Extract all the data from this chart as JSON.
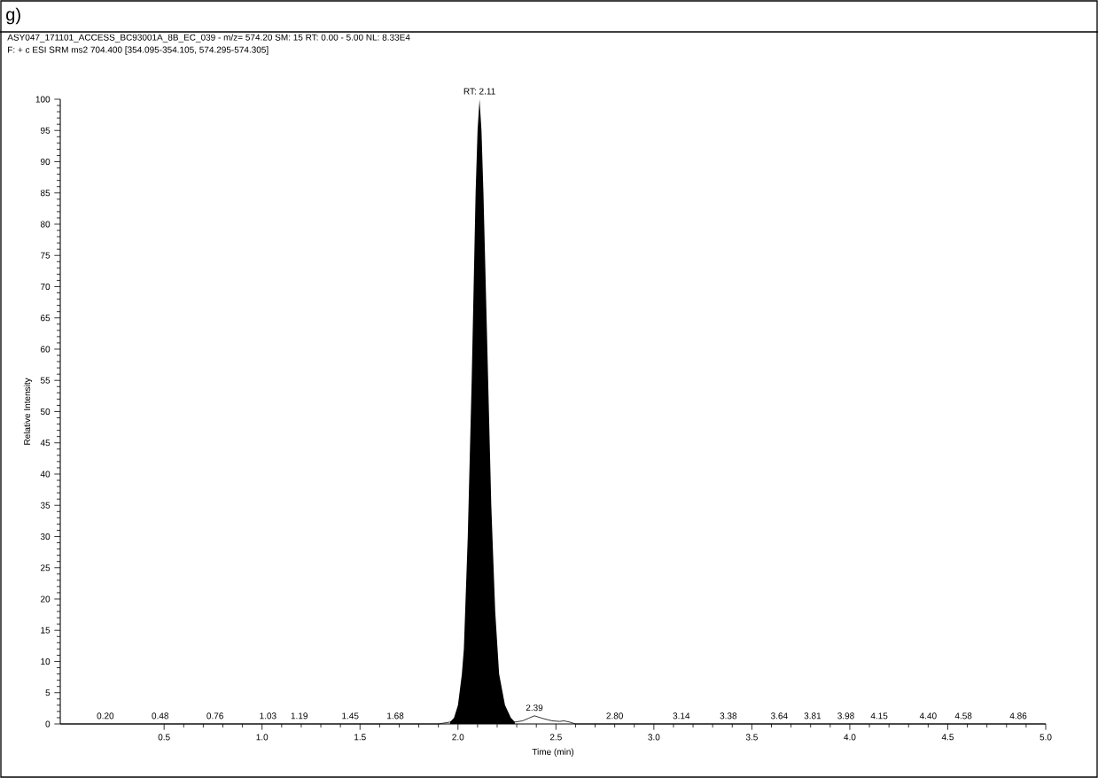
{
  "chart_data": {
    "type": "line",
    "title": "ASY047_171101_ACCESS_BC93001A_8B_EC_039 - m/z= 574.20  SM: 15 RT: 0.00 - 5.00  NL: 8.33E4",
    "subtitle": "F: + c ESI SRM ms2 704.400 [354.095-354.105, 574.295-574.305]",
    "xlabel": "Time (min)",
    "ylabel": "Relative Intensity",
    "series": [
      {
        "type": "area",
        "color": "#000000",
        "x": [
          1.96,
          1.98,
          2.0,
          2.02,
          2.03,
          2.05,
          2.07,
          2.09,
          2.1,
          2.11,
          2.12,
          2.13,
          2.15,
          2.17,
          2.19,
          2.21,
          2.24,
          2.27,
          2.29
        ],
        "values": [
          0.3,
          1,
          3,
          8,
          12,
          30,
          55,
          85,
          95,
          100,
          95,
          85,
          60,
          35,
          18,
          8,
          3,
          1,
          0.3
        ]
      },
      {
        "color": "#000000",
        "x": [
          -0.03,
          1.9,
          1.96,
          2.29,
          2.33,
          2.36,
          2.39,
          2.43,
          2.48,
          2.52,
          2.54,
          2.57,
          2.6,
          5.0
        ],
        "values": [
          0,
          0,
          0.3,
          0.3,
          0.5,
          0.9,
          1.3,
          0.9,
          0.5,
          0.4,
          0.5,
          0.3,
          0,
          0
        ]
      }
    ],
    "xlim": [
      -0.03,
      5.0
    ],
    "ylim": [
      0,
      100
    ],
    "xticks": [
      {
        "value": 0.5,
        "label": "0.5"
      },
      {
        "value": 1.0,
        "label": "1.0"
      },
      {
        "value": 1.5,
        "label": "1.5"
      },
      {
        "value": 2.0,
        "label": "2.0"
      },
      {
        "value": 2.5,
        "label": "2.5"
      },
      {
        "value": 3.0,
        "label": "3.0"
      },
      {
        "value": 3.5,
        "label": "3.5"
      },
      {
        "value": 4.0,
        "label": "4.0"
      },
      {
        "value": 4.5,
        "label": "4.5"
      },
      {
        "value": 5.0,
        "label": "5.0"
      }
    ],
    "yticks": [
      0,
      5,
      10,
      15,
      20,
      25,
      30,
      35,
      40,
      45,
      50,
      55,
      60,
      65,
      70,
      75,
      80,
      85,
      90,
      95,
      100
    ],
    "grid": false,
    "annotations": [
      "g)",
      {
        "text": "RT: 2.11",
        "x": 2.11,
        "y": 100
      },
      {
        "text": "2.39",
        "x": 2.39,
        "y": 1.3
      },
      {
        "text": "0.20",
        "x": 0.2,
        "y": 0
      },
      {
        "text": "0.48",
        "x": 0.48,
        "y": 0
      },
      {
        "text": "0.76",
        "x": 0.76,
        "y": 0
      },
      {
        "text": "1.03",
        "x": 1.03,
        "y": 0
      },
      {
        "text": "1.19",
        "x": 1.19,
        "y": 0
      },
      {
        "text": "1.45",
        "x": 1.45,
        "y": 0
      },
      {
        "text": "1.68",
        "x": 1.68,
        "y": 0
      },
      {
        "text": "2.80",
        "x": 2.8,
        "y": 0
      },
      {
        "text": "3.14",
        "x": 3.14,
        "y": 0
      },
      {
        "text": "3.38",
        "x": 3.38,
        "y": 0
      },
      {
        "text": "3.64",
        "x": 3.64,
        "y": 0
      },
      {
        "text": "3.81",
        "x": 3.81,
        "y": 0
      },
      {
        "text": "3.98",
        "x": 3.98,
        "y": 0
      },
      {
        "text": "4.15",
        "x": 4.15,
        "y": 0
      },
      {
        "text": "4.40",
        "x": 4.4,
        "y": 0
      },
      {
        "text": "4.58",
        "x": 4.58,
        "y": 0
      },
      {
        "text": "4.86",
        "x": 4.86,
        "y": 0
      }
    ]
  }
}
